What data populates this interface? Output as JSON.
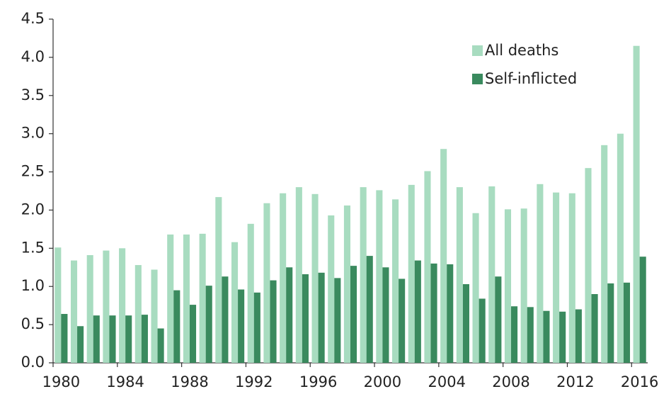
{
  "chart_data": {
    "type": "bar",
    "categories": [
      "1980",
      null,
      null,
      null,
      "1984",
      null,
      null,
      null,
      "1988",
      null,
      null,
      null,
      "1992",
      null,
      null,
      null,
      "1996",
      null,
      null,
      null,
      "2000",
      null,
      null,
      null,
      "2004",
      null,
      null,
      null,
      "2008",
      null,
      null,
      null,
      "2012",
      null,
      null,
      null,
      "2016"
    ],
    "series": [
      {
        "name": "All deaths",
        "color": "#a8dcc0",
        "values": [
          1.51,
          1.34,
          1.41,
          1.47,
          1.5,
          1.28,
          1.22,
          1.68,
          1.68,
          1.69,
          2.17,
          1.58,
          1.82,
          2.09,
          2.22,
          2.3,
          2.21,
          1.93,
          2.06,
          2.3,
          2.26,
          2.14,
          2.33,
          2.51,
          2.8,
          2.3,
          1.96,
          2.31,
          2.01,
          2.02,
          2.34,
          2.23,
          2.22,
          2.55,
          2.85,
          3.0,
          4.15
        ]
      },
      {
        "name": "Self-inflicted",
        "color": "#3a8a5e",
        "values": [
          0.64,
          0.48,
          0.62,
          0.62,
          0.62,
          0.63,
          0.45,
          0.95,
          0.76,
          1.01,
          1.13,
          0.96,
          0.92,
          1.08,
          1.25,
          1.16,
          1.18,
          1.11,
          1.27,
          1.4,
          1.25,
          1.1,
          1.34,
          1.3,
          1.29,
          1.03,
          0.84,
          1.13,
          0.74,
          0.73,
          0.68,
          0.67,
          0.7,
          0.9,
          1.04,
          1.05,
          1.39
        ]
      }
    ],
    "ylim": [
      0,
      4.5
    ],
    "yticks": [
      {
        "value": 0,
        "label": "0.0"
      },
      0.5,
      {
        "value": 1,
        "label": "1.0"
      },
      1.5,
      {
        "value": 2,
        "label": "2.0"
      },
      2.5,
      {
        "value": 3,
        "label": "3.0"
      },
      3.5,
      {
        "value": 4,
        "label": "4.0"
      },
      4.5
    ],
    "legend": "top-right"
  }
}
